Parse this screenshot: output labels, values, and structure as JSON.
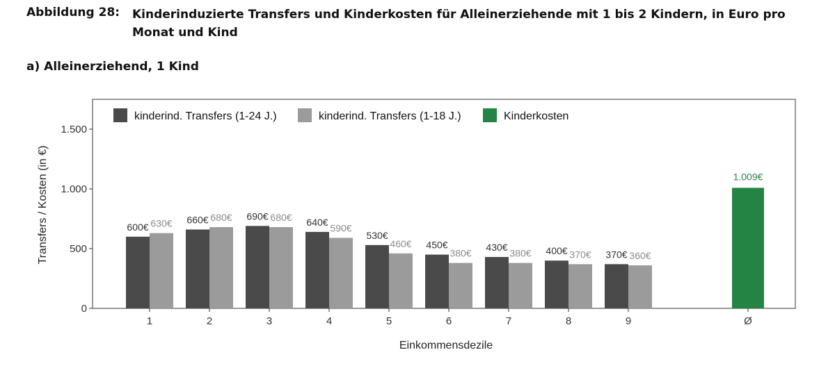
{
  "figure": {
    "number": "Abbildung 28:",
    "title": "Kinderinduzierte Transfers und Kinderkosten für Alleinerziehende mit 1 bis 2 Kindern, in Euro pro Monat und Kind",
    "subtitle": "a) Alleinerziehend, 1 Kind"
  },
  "colors": {
    "transfers_24": "#4a4a4a",
    "transfers_18": "#9b9b9b",
    "kosten": "#238443"
  },
  "chart_data": {
    "type": "bar",
    "xlabel": "Einkommensdezile",
    "ylabel": "Transfers / Kosten (in €)",
    "ylim": [
      0,
      1750
    ],
    "yticks": [
      0,
      500,
      1000,
      1500
    ],
    "ytick_labels": [
      "0",
      "500",
      "1.000",
      "1.500"
    ],
    "categories": [
      "1",
      "2",
      "3",
      "4",
      "5",
      "6",
      "7",
      "8",
      "9",
      "Ø"
    ],
    "legend_position": "top-left inside",
    "grid": false,
    "series": [
      {
        "name": "kinderind. Transfers (1-24 J.)",
        "color": "#4a4a4a",
        "values": [
          600,
          660,
          690,
          640,
          530,
          450,
          430,
          400,
          370,
          null
        ],
        "labels": [
          "600€",
          "660€",
          "690€",
          "640€",
          "530€",
          "450€",
          "430€",
          "400€",
          "370€",
          null
        ]
      },
      {
        "name": "kinderind. Transfers (1-18 J.)",
        "color": "#9b9b9b",
        "values": [
          630,
          680,
          680,
          590,
          460,
          380,
          380,
          370,
          360,
          null
        ],
        "labels": [
          "630€",
          "680€",
          "680€",
          "590€",
          "460€",
          "380€",
          "380€",
          "370€",
          "360€",
          null
        ]
      },
      {
        "name": "Kinderkosten",
        "color": "#238443",
        "values": [
          null,
          null,
          null,
          null,
          null,
          null,
          null,
          null,
          null,
          1009
        ],
        "labels": [
          null,
          null,
          null,
          null,
          null,
          null,
          null,
          null,
          null,
          "1.009€"
        ]
      }
    ]
  }
}
